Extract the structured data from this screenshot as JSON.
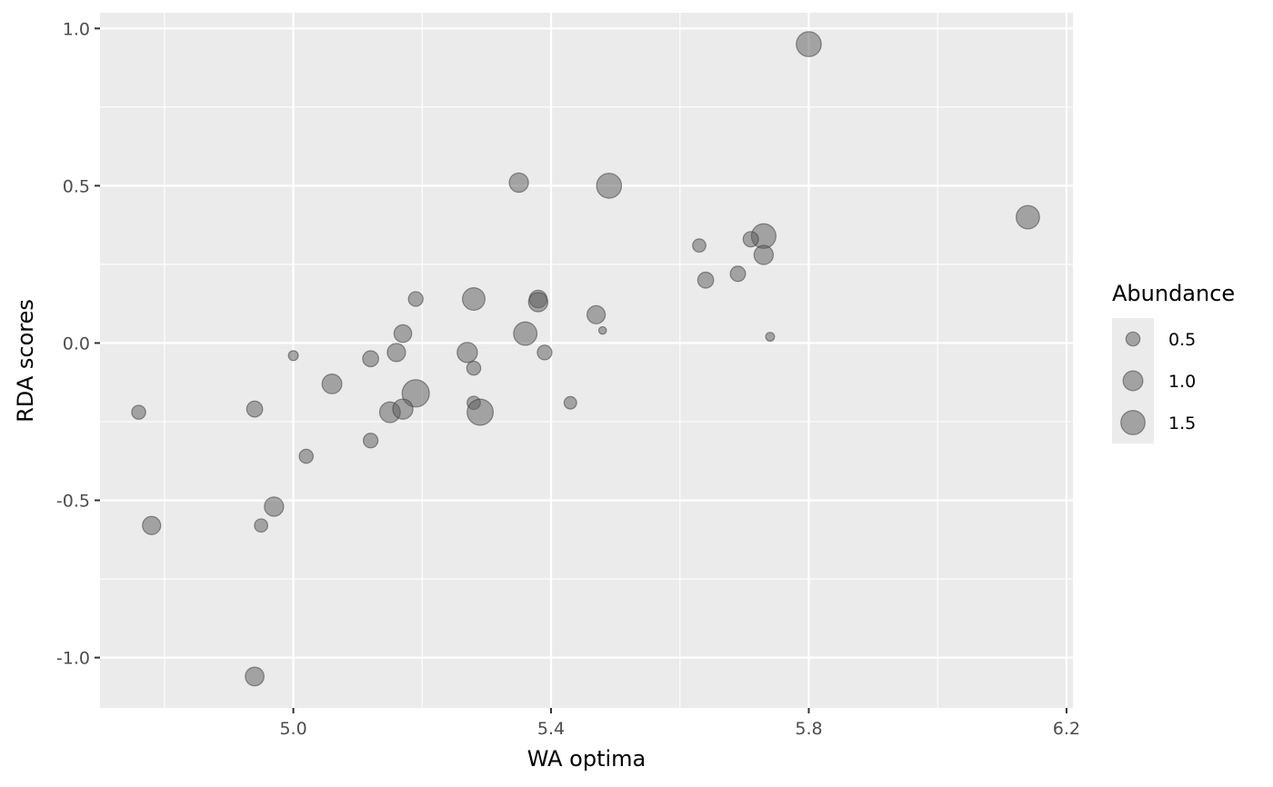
{
  "chart_data": {
    "type": "scatter",
    "xlabel": "WA optima",
    "ylabel": "RDA scores",
    "xlim": [
      4.7,
      6.21
    ],
    "ylim": [
      -1.16,
      1.05
    ],
    "x_ticks": [
      5.0,
      5.4,
      5.8,
      6.2
    ],
    "x_tick_labels": [
      "5.0",
      "5.4",
      "5.8",
      "6.2"
    ],
    "y_ticks": [
      1.0,
      0.5,
      0.0,
      -0.5,
      -1.0
    ],
    "y_tick_labels": [
      "1.0",
      "0.5",
      "0.0",
      "-0.5",
      "-1.0"
    ],
    "grid": true,
    "point_color": "#595959",
    "panel_background": "#ebebeb",
    "legend": {
      "title": "Abundance",
      "placement": "right",
      "entries": [
        {
          "label": "0.5",
          "value": 0.5
        },
        {
          "label": "1.0",
          "value": 1.0
        },
        {
          "label": "1.5",
          "value": 1.5
        }
      ]
    },
    "points": [
      {
        "x": 5.8,
        "y": 0.95,
        "size": 1.6
      },
      {
        "x": 5.35,
        "y": 0.51,
        "size": 0.95
      },
      {
        "x": 5.49,
        "y": 0.5,
        "size": 1.6
      },
      {
        "x": 6.14,
        "y": 0.4,
        "size": 1.4
      },
      {
        "x": 5.73,
        "y": 0.34,
        "size": 1.55
      },
      {
        "x": 5.71,
        "y": 0.33,
        "size": 0.6
      },
      {
        "x": 5.63,
        "y": 0.31,
        "size": 0.45
      },
      {
        "x": 5.73,
        "y": 0.28,
        "size": 0.95
      },
      {
        "x": 5.69,
        "y": 0.22,
        "size": 0.6
      },
      {
        "x": 5.64,
        "y": 0.2,
        "size": 0.65
      },
      {
        "x": 5.19,
        "y": 0.14,
        "size": 0.55
      },
      {
        "x": 5.28,
        "y": 0.14,
        "size": 1.3
      },
      {
        "x": 5.38,
        "y": 0.14,
        "size": 0.8
      },
      {
        "x": 5.38,
        "y": 0.13,
        "size": 0.95
      },
      {
        "x": 5.47,
        "y": 0.09,
        "size": 0.85
      },
      {
        "x": 5.48,
        "y": 0.04,
        "size": 0.15
      },
      {
        "x": 5.17,
        "y": 0.03,
        "size": 0.8
      },
      {
        "x": 5.36,
        "y": 0.03,
        "size": 1.4
      },
      {
        "x": 5.74,
        "y": 0.02,
        "size": 0.2
      },
      {
        "x": 5.27,
        "y": -0.03,
        "size": 1.05
      },
      {
        "x": 5.39,
        "y": -0.03,
        "size": 0.55
      },
      {
        "x": 5.16,
        "y": -0.03,
        "size": 0.85
      },
      {
        "x": 5.0,
        "y": -0.04,
        "size": 0.25
      },
      {
        "x": 5.12,
        "y": -0.05,
        "size": 0.65
      },
      {
        "x": 5.28,
        "y": -0.08,
        "size": 0.5
      },
      {
        "x": 5.06,
        "y": -0.13,
        "size": 1.0
      },
      {
        "x": 5.19,
        "y": -0.16,
        "size": 1.9
      },
      {
        "x": 5.28,
        "y": -0.19,
        "size": 0.45
      },
      {
        "x": 5.43,
        "y": -0.19,
        "size": 0.4
      },
      {
        "x": 4.94,
        "y": -0.21,
        "size": 0.65
      },
      {
        "x": 4.76,
        "y": -0.22,
        "size": 0.5
      },
      {
        "x": 5.15,
        "y": -0.22,
        "size": 1.1
      },
      {
        "x": 5.17,
        "y": -0.21,
        "size": 1.05
      },
      {
        "x": 5.29,
        "y": -0.22,
        "size": 1.75
      },
      {
        "x": 5.12,
        "y": -0.31,
        "size": 0.55
      },
      {
        "x": 5.02,
        "y": -0.36,
        "size": 0.5
      },
      {
        "x": 4.97,
        "y": -0.52,
        "size": 0.95
      },
      {
        "x": 4.78,
        "y": -0.58,
        "size": 0.85
      },
      {
        "x": 4.95,
        "y": -0.58,
        "size": 0.45
      },
      {
        "x": 4.94,
        "y": -1.06,
        "size": 0.9
      }
    ]
  }
}
